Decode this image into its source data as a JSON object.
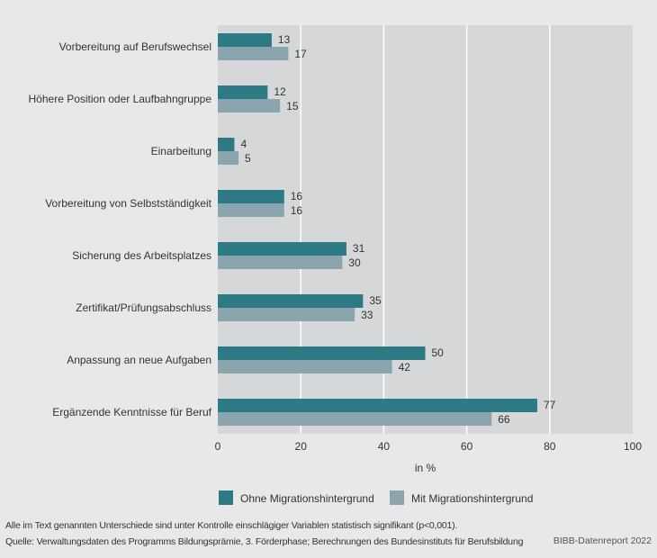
{
  "chart_data": {
    "type": "bar",
    "orientation": "horizontal",
    "categories": [
      "Vorbereitung auf Berufswechsel",
      "Höhere Position oder Laufbahngruppe",
      "Einarbeitung",
      "Vorbereitung von Selbstständigkeit",
      "Sicherung des Arbeitsplatzes",
      "Zertifikat/Prüfungsabschluss",
      "Anpassung an neue Aufgaben",
      "Ergänzende Kenntnisse für Beruf"
    ],
    "series": [
      {
        "name": "Ohne Migrationshintergrund",
        "color": "#2e7a84",
        "values": [
          13,
          12,
          4,
          16,
          31,
          35,
          50,
          77
        ]
      },
      {
        "name": "Mit Migrationshintergrund",
        "color": "#8aa5ad",
        "values": [
          17,
          15,
          5,
          16,
          30,
          33,
          42,
          66
        ]
      }
    ],
    "xlabel": "in %",
    "xlim": [
      0,
      100
    ],
    "xticks": [
      "0",
      "20",
      "40",
      "60",
      "80",
      "100"
    ],
    "grid": true,
    "legend": "bottom"
  },
  "footnote": "Alle im Text genannten Unterschiede sind unter Kontrolle einschlägiger Variablen statistisch signifikant (p<0,001).",
  "source": "Quelle: Verwaltungsdaten des Programms Bildungsprämie, 3. Förderphase; Berechnungen des Bundesinstituts für Berufsbildung",
  "credit": "BIBB-Datenreport 2022"
}
